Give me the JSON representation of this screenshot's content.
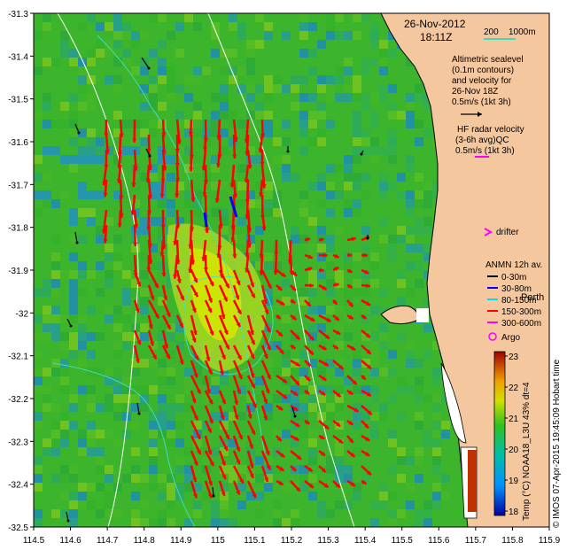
{
  "map": {
    "date": "26-Nov-2012",
    "time": "18:11Z",
    "scale_label": "200",
    "scale_label_2": "1000m",
    "x_ticks": [
      "114.5",
      "114.6",
      "114.7",
      "114.8",
      "114.9",
      "115",
      "115.1",
      "115.2",
      "115.3",
      "115.4",
      "115.5",
      "115.6",
      "115.7",
      "115.8",
      "115.9"
    ],
    "y_ticks": [
      "-31.3",
      "-31.4",
      "-31.5",
      "-31.6",
      "-31.7",
      "-31.8",
      "-31.9",
      "-32",
      "-32.1",
      "-32.2",
      "-32.3",
      "-32.4",
      "-32.5"
    ],
    "x_range": [
      114.5,
      115.9
    ],
    "y_range": [
      -32.5,
      -31.3
    ]
  },
  "legend": {
    "altimetry_lines": [
      "Altimetric sealevel",
      "(0.1m contours)",
      "and velocity for",
      "26-Nov 18Z",
      "0.5m/s (1kt 3h)"
    ],
    "hf_lines": [
      "HF radar velocity",
      "(3-6h avg)QC",
      "0.5m/s (1kt 3h)"
    ],
    "drifter": "drifter",
    "anmn_title": "ANMN 12h av.",
    "anmn_items": [
      {
        "label": "0-30m",
        "color": "#000000"
      },
      {
        "label": "30-80m",
        "color": "#0000ff"
      },
      {
        "label": "80-150m",
        "color": "#00e0e0"
      },
      {
        "label": "150-300m",
        "color": "#ff0000"
      },
      {
        "label": "300-600m",
        "color": "#ff00ff"
      }
    ],
    "perth": "Perth",
    "argo": "Argo"
  },
  "colorbar": {
    "ticks": [
      "23",
      "22",
      "21",
      "20",
      "19",
      "18"
    ],
    "label": "Temp (°C) NOAA18_L3U 43% dt=4"
  },
  "credit": "© IMOS 07-Apr-2015 19:45:09 Hobart time",
  "colors": {
    "land": "#f5c79e",
    "vector_hf": "#ff0000",
    "scale_line": "#00e0c0",
    "drifter": "#ff00ff"
  }
}
